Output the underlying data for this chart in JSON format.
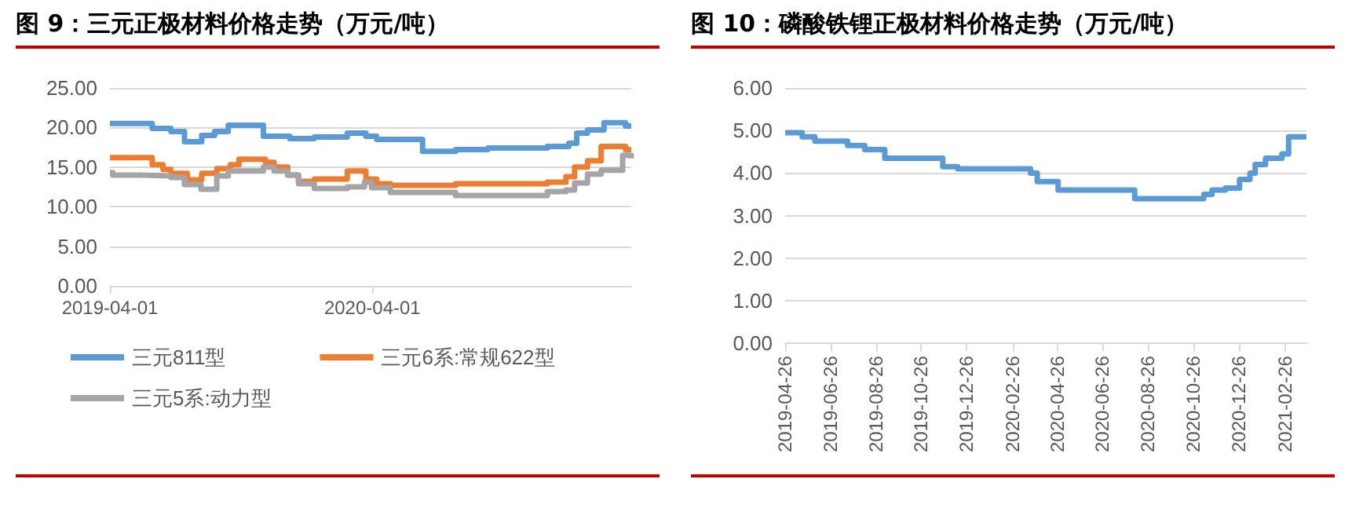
{
  "chart_data": [
    {
      "type": "step",
      "title": "图 9：三元正极材料价格走势（万元/吨）",
      "xlim": [
        "2019-04-01",
        "2021-03-28"
      ],
      "xticks": [
        "2019-04-01",
        "2020-04-01"
      ],
      "ylim": [
        0,
        25
      ],
      "yticks": [
        {
          "value": 0,
          "label": "0.00"
        },
        {
          "value": 5,
          "label": "5.00"
        },
        {
          "value": 10,
          "label": "10.00"
        },
        {
          "value": 15,
          "label": "15.00"
        },
        {
          "value": 20,
          "label": "20.00"
        },
        {
          "value": 25,
          "label": "25.00"
        }
      ],
      "grid": "y",
      "legend": "bottom",
      "marker": "none",
      "line_style": "solid",
      "series": [
        {
          "name": "三元811型",
          "color": "#5b9bd5",
          "x": [
            "2019-04-01",
            "2019-05-30",
            "2019-06-25",
            "2019-07-14",
            "2019-08-07",
            "2019-08-25",
            "2019-09-13",
            "2019-11-01",
            "2019-12-08",
            "2020-01-11",
            "2020-02-26",
            "2020-03-23",
            "2020-04-07",
            "2020-06-10",
            "2020-07-26",
            "2020-09-09",
            "2020-12-01",
            "2020-12-31",
            "2021-01-11",
            "2021-01-26",
            "2021-02-18",
            "2021-03-20",
            "2021-03-28"
          ],
          "values": [
            20.5,
            19.9,
            19.5,
            18.2,
            19.0,
            19.5,
            20.3,
            18.9,
            18.6,
            18.8,
            19.3,
            18.9,
            18.5,
            17.0,
            17.2,
            17.4,
            17.6,
            18.0,
            19.3,
            19.7,
            20.6,
            20.2,
            20.2
          ]
        },
        {
          "name": "三元6系:常规622型",
          "color": "#ed7d31",
          "x": [
            "2019-04-01",
            "2019-05-30",
            "2019-06-14",
            "2019-06-25",
            "2019-07-18",
            "2019-08-07",
            "2019-08-28",
            "2019-09-16",
            "2019-09-28",
            "2019-11-04",
            "2019-11-16",
            "2019-12-05",
            "2019-12-20",
            "2020-01-11",
            "2020-02-26",
            "2020-03-23",
            "2020-04-07",
            "2020-04-26",
            "2020-07-26",
            "2020-12-01",
            "2020-12-27",
            "2021-01-08",
            "2021-01-26",
            "2021-02-14",
            "2021-03-20",
            "2021-03-28"
          ],
          "values": [
            16.2,
            15.3,
            14.7,
            14.2,
            13.4,
            14.2,
            14.8,
            15.3,
            16.0,
            15.6,
            15.0,
            14.0,
            13.2,
            13.5,
            14.5,
            13.5,
            12.9,
            12.7,
            12.9,
            13.1,
            13.8,
            15.0,
            15.8,
            17.6,
            17.2,
            17.2
          ]
        },
        {
          "name": "三元5系:动力型",
          "color": "#a5a5a5",
          "x": [
            "2019-04-01",
            "2019-04-05",
            "2019-05-15",
            "2019-06-25",
            "2019-07-14",
            "2019-08-06",
            "2019-08-28",
            "2019-09-13",
            "2019-11-01",
            "2019-11-16",
            "2019-12-05",
            "2019-12-20",
            "2020-01-11",
            "2020-02-26",
            "2020-03-21",
            "2020-03-31",
            "2020-04-26",
            "2020-07-26",
            "2020-12-01",
            "2020-12-27",
            "2021-01-08",
            "2021-01-26",
            "2021-02-14",
            "2021-03-16",
            "2021-03-28"
          ],
          "values": [
            14.3,
            14.0,
            13.9,
            13.7,
            12.8,
            12.2,
            13.9,
            14.5,
            15.0,
            14.5,
            14.0,
            12.9,
            12.3,
            12.5,
            13.1,
            12.4,
            11.8,
            11.4,
            11.9,
            12.1,
            13.0,
            14.1,
            14.6,
            16.5,
            16.1
          ]
        }
      ]
    },
    {
      "type": "step",
      "title": "图 10：磷酸铁锂正极材料价格走势（万元/吨）",
      "xlim": [
        "2019-04-26",
        "2021-03-27"
      ],
      "xticks": [
        "2019-04-26",
        "2019-06-26",
        "2019-08-26",
        "2019-10-26",
        "2019-12-26",
        "2020-02-26",
        "2020-04-26",
        "2020-06-26",
        "2020-08-26",
        "2020-10-26",
        "2020-12-26",
        "2021-02-26"
      ],
      "ylim": [
        0,
        6
      ],
      "yticks": [
        {
          "value": 0,
          "label": "0.00"
        },
        {
          "value": 1,
          "label": "1.00"
        },
        {
          "value": 2,
          "label": "2.00"
        },
        {
          "value": 3,
          "label": "3.00"
        },
        {
          "value": 4,
          "label": "4.00"
        },
        {
          "value": 5,
          "label": "5.00"
        },
        {
          "value": 6,
          "label": "6.00"
        }
      ],
      "grid": "y",
      "marker": "none",
      "line_style": "solid",
      "series": [
        {
          "color": "#5b9bd5",
          "x": [
            "2019-04-26",
            "2019-05-19",
            "2019-06-05",
            "2019-07-19",
            "2019-08-11",
            "2019-09-07",
            "2019-11-24",
            "2019-12-14",
            "2020-03-21",
            "2020-03-30",
            "2020-04-27",
            "2020-08-08",
            "2020-11-09",
            "2020-11-20",
            "2020-12-08",
            "2020-12-27",
            "2021-01-10",
            "2021-01-17",
            "2021-01-31",
            "2021-02-22",
            "2021-03-03",
            "2021-03-27"
          ],
          "values": [
            4.95,
            4.85,
            4.75,
            4.65,
            4.55,
            4.35,
            4.15,
            4.1,
            4.0,
            3.8,
            3.6,
            3.4,
            3.5,
            3.6,
            3.65,
            3.85,
            4.0,
            4.2,
            4.35,
            4.45,
            4.85,
            4.85
          ]
        }
      ]
    }
  ]
}
